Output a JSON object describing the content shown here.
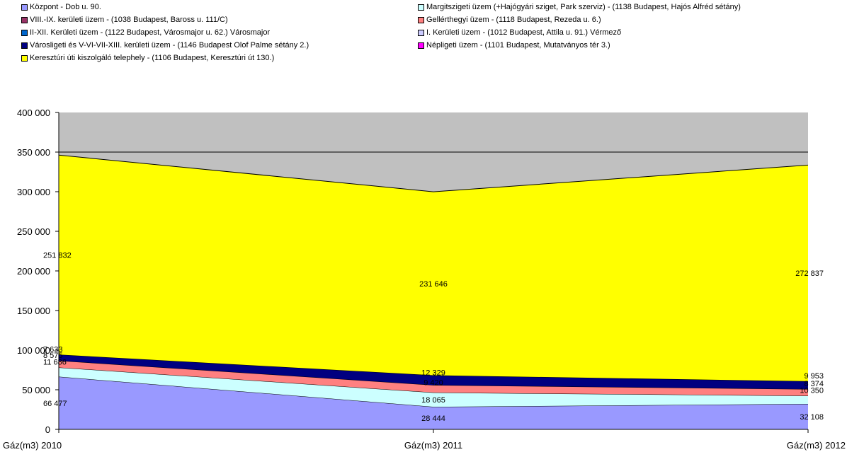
{
  "chart_data": {
    "type": "area",
    "stacked": true,
    "categories": [
      "Gáz(m3) 2010",
      "Gáz(m3) 2011",
      "Gáz(m3) 2012"
    ],
    "ylim": [
      0,
      400000
    ],
    "y_ticks": [
      "0",
      "50 000",
      "100 000",
      "150 000",
      "200 000",
      "250 000",
      "300 000",
      "350 000",
      "400 000"
    ],
    "y_tick_values": [
      0,
      50000,
      100000,
      150000,
      200000,
      250000,
      300000,
      350000,
      400000
    ],
    "plot_background": "#c0c0c0",
    "legend_position": "top",
    "series": [
      {
        "name": "Központ - Dob u. 90.",
        "color": "#9999ff",
        "values": [
          66477,
          28444,
          32108
        ],
        "labels": [
          "66 477",
          "28 444",
          "32 108"
        ]
      },
      {
        "name": "Margitszigeti üzem (+Hajógyári sziget, Park szerviz) - (1138 Budapest, Hajós Alfréd sétány)",
        "color": "#ccffff",
        "values": [
          11686,
          18065,
          10350
        ],
        "labels": [
          "11 686",
          "18 065",
          "10 350"
        ]
      },
      {
        "name": "VIII.-IX. kerületi üzem - (1038 Budapest, Baross u. 111/C)",
        "color": "#993366",
        "values": [
          0,
          0,
          0
        ],
        "labels": [
          "",
          "",
          ""
        ]
      },
      {
        "name": "Gellérthegyi üzem - (1118 Budapest, Rezeda u. 6.)",
        "color": "#ff8080",
        "values": [
          8575,
          9420,
          8374
        ],
        "labels": [
          "8 575",
          "9 420",
          "8 374"
        ]
      },
      {
        "name": "II-XII. Kerületi üzem - (1122 Budapest, Városmajor u. 62.) Városmajor",
        "color": "#0066cc",
        "values": [
          0,
          0,
          0
        ],
        "labels": [
          "",
          "",
          ""
        ]
      },
      {
        "name": "I. Kerületi üzem - (1012 Budapest, Attila u. 91.) Vérmező",
        "color": "#ccccff",
        "values": [
          0,
          0,
          0
        ],
        "labels": [
          "",
          "",
          ""
        ]
      },
      {
        "name": "Városligeti és V-VI-VII-XIII. kerületi üzem - (1146 Budapest Olof Palme sétány 2.)",
        "color": "#000080",
        "values": [
          7633,
          12329,
          9953
        ],
        "labels": [
          "7 633",
          "12 329",
          "9 953"
        ]
      },
      {
        "name": "Népligeti üzem - (1101 Budapest, Mutatványos tér 3.)",
        "color": "#ff00ff",
        "values": [
          0,
          0,
          0
        ],
        "labels": [
          "",
          "",
          ""
        ]
      },
      {
        "name": "Keresztúri úti kiszolgáló telephely - (1106 Budapest, Keresztúri út 130.)",
        "color": "#ffff00",
        "values": [
          251832,
          231646,
          272837
        ],
        "labels": [
          "251 832",
          "231 646",
          "272 837"
        ]
      }
    ]
  }
}
